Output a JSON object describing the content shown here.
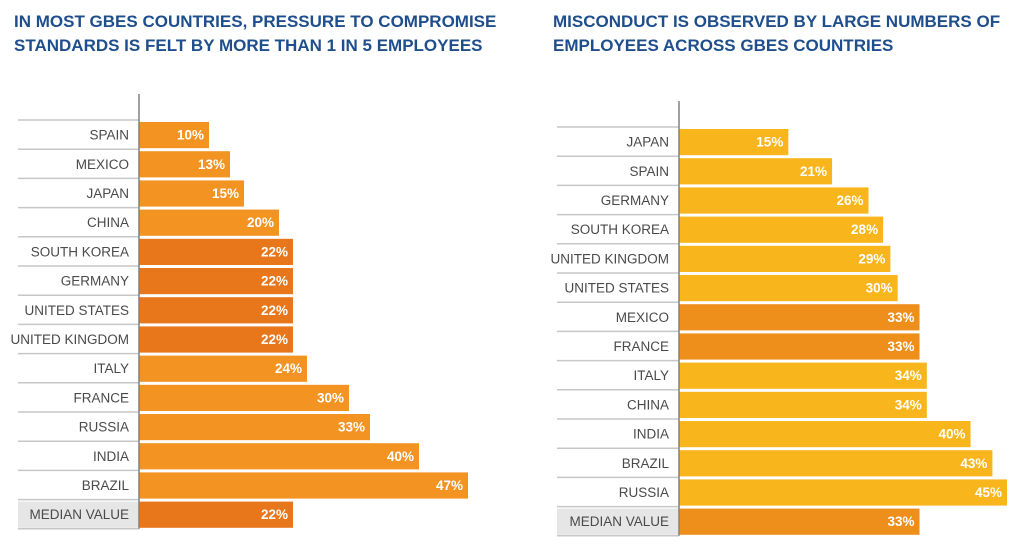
{
  "chart_data": [
    {
      "type": "bar",
      "orientation": "horizontal",
      "title": "IN MOST GBES COUNTRIES, PRESSURE TO COMPROMISE STANDARDS IS FELT BY MORE THAN 1 IN 5 EMPLOYEES",
      "categories": [
        "SPAIN",
        "MEXICO",
        "JAPAN",
        "CHINA",
        "SOUTH KOREA",
        "GERMANY",
        "UNITED STATES",
        "UNITED KINGDOM",
        "ITALY",
        "FRANCE",
        "RUSSIA",
        "INDIA",
        "BRAZIL",
        "MEDIAN VALUE"
      ],
      "values": [
        10,
        13,
        15,
        20,
        22,
        22,
        22,
        22,
        24,
        30,
        33,
        40,
        47,
        22
      ],
      "value_labels": [
        "10%",
        "13%",
        "15%",
        "20%",
        "22%",
        "22%",
        "22%",
        "22%",
        "24%",
        "30%",
        "33%",
        "40%",
        "47%",
        "22%"
      ],
      "xlim": [
        0,
        47
      ],
      "colors": {
        "bar": "#f29322",
        "bar_median_match": "#e8761a",
        "median_row_bg": "#e6e6e6"
      }
    },
    {
      "type": "bar",
      "orientation": "horizontal",
      "title": "MISCONDUCT IS OBSERVED BY LARGE NUMBERS OF EMPLOYEES ACROSS GBES COUNTRIES",
      "categories": [
        "JAPAN",
        "SPAIN",
        "GERMANY",
        "SOUTH KOREA",
        "UNITED KINGDOM",
        "UNITED STATES",
        "MEXICO",
        "FRANCE",
        "ITALY",
        "CHINA",
        "INDIA",
        "BRAZIL",
        "RUSSIA",
        "MEDIAN VALUE"
      ],
      "values": [
        15,
        21,
        26,
        28,
        29,
        30,
        33,
        33,
        34,
        34,
        40,
        43,
        45,
        33
      ],
      "value_labels": [
        "15%",
        "21%",
        "26%",
        "28%",
        "29%",
        "30%",
        "33%",
        "33%",
        "34%",
        "34%",
        "40%",
        "43%",
        "45%",
        "33%"
      ],
      "xlim": [
        0,
        45
      ],
      "colors": {
        "bar": "#f9b51c",
        "bar_median_match": "#ee8f1c",
        "median_row_bg": "#e6e6e6"
      }
    }
  ]
}
